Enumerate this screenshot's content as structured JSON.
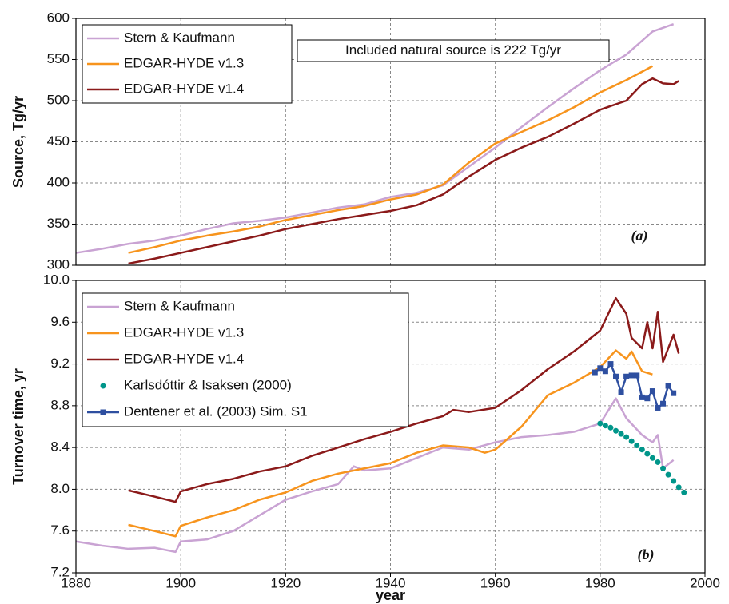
{
  "chart_data": [
    {
      "type": "line",
      "ylabel": "Source, Tg/yr",
      "annotation": "Included natural source is 222 Tg/yr",
      "panel_label": "(a)",
      "xlim": [
        1880,
        2000
      ],
      "xticks": [
        1880,
        1900,
        1920,
        1940,
        1960,
        1980,
        2000
      ],
      "ylim": [
        300,
        600
      ],
      "yticks": [
        300,
        350,
        400,
        450,
        500,
        550,
        600
      ],
      "grid": true,
      "legend": "upper left",
      "series": [
        {
          "name": "Stern & Kaufmann",
          "color": "#c9a3d3",
          "line": true,
          "x": [
            1880,
            1885,
            1890,
            1895,
            1900,
            1905,
            1910,
            1915,
            1920,
            1925,
            1930,
            1935,
            1940,
            1945,
            1950,
            1955,
            1960,
            1965,
            1970,
            1975,
            1980,
            1985,
            1990,
            1994
          ],
          "values": [
            315,
            320,
            326,
            330,
            336,
            344,
            351,
            354,
            358,
            364,
            370,
            374,
            383,
            388,
            397,
            420,
            443,
            468,
            492,
            515,
            537,
            556,
            584,
            593
          ]
        },
        {
          "name": "EDGAR-HYDE v1.3",
          "color": "#f7941d",
          "line": true,
          "x": [
            1890,
            1895,
            1900,
            1905,
            1910,
            1915,
            1920,
            1925,
            1930,
            1935,
            1940,
            1945,
            1950,
            1955,
            1960,
            1965,
            1970,
            1975,
            1980,
            1985,
            1990
          ],
          "values": [
            315,
            322,
            330,
            336,
            341,
            347,
            355,
            361,
            367,
            372,
            380,
            386,
            398,
            425,
            448,
            462,
            476,
            492,
            510,
            525,
            542
          ]
        },
        {
          "name": "EDGAR-HYDE v1.4",
          "color": "#8b1a1a",
          "line": true,
          "x": [
            1890,
            1895,
            1900,
            1905,
            1910,
            1915,
            1920,
            1925,
            1930,
            1935,
            1940,
            1945,
            1950,
            1955,
            1960,
            1965,
            1970,
            1975,
            1980,
            1985,
            1988,
            1990,
            1992,
            1994,
            1995
          ],
          "values": [
            302,
            308,
            315,
            322,
            329,
            336,
            344,
            350,
            356,
            361,
            366,
            373,
            386,
            408,
            428,
            443,
            456,
            472,
            489,
            500,
            520,
            527,
            521,
            520,
            524
          ]
        }
      ]
    },
    {
      "type": "line",
      "ylabel": "Turnover time, yr",
      "xlabel": "year",
      "panel_label": "(b)",
      "xlim": [
        1880,
        2000
      ],
      "xticks": [
        1880,
        1900,
        1920,
        1940,
        1960,
        1980,
        2000
      ],
      "ylim": [
        7.2,
        10.0
      ],
      "yticks": [
        7.2,
        7.6,
        {
          "value": 8.0,
          "label": "8.0"
        },
        8.4,
        8.8,
        9.2,
        9.6,
        {
          "value": 10.0,
          "label": "10.0"
        }
      ],
      "grid": true,
      "legend": "upper left",
      "series": [
        {
          "name": "Stern & Kaufmann",
          "color": "#c9a3d3",
          "line": true,
          "x": [
            1880,
            1885,
            1890,
            1895,
            1899,
            1900,
            1905,
            1910,
            1915,
            1920,
            1925,
            1930,
            1933,
            1935,
            1940,
            1945,
            1950,
            1955,
            1960,
            1965,
            1970,
            1975,
            1980,
            1983,
            1985,
            1988,
            1990,
            1991,
            1992,
            1994
          ],
          "values": [
            7.5,
            7.46,
            7.43,
            7.44,
            7.4,
            7.5,
            7.52,
            7.6,
            7.75,
            7.9,
            7.98,
            8.05,
            8.22,
            8.18,
            8.2,
            8.3,
            8.4,
            8.38,
            8.45,
            8.5,
            8.52,
            8.55,
            8.63,
            8.87,
            8.68,
            8.52,
            8.45,
            8.52,
            8.2,
            8.28
          ]
        },
        {
          "name": "EDGAR-HYDE v1.3",
          "color": "#f7941d",
          "line": true,
          "x": [
            1890,
            1895,
            1899,
            1900,
            1905,
            1910,
            1915,
            1920,
            1925,
            1930,
            1935,
            1940,
            1945,
            1950,
            1955,
            1958,
            1960,
            1965,
            1970,
            1975,
            1980,
            1983,
            1985,
            1986,
            1988,
            1990
          ],
          "values": [
            7.66,
            7.6,
            7.55,
            7.65,
            7.73,
            7.8,
            7.9,
            7.97,
            8.08,
            8.15,
            8.2,
            8.25,
            8.35,
            8.42,
            8.4,
            8.35,
            8.38,
            8.6,
            8.9,
            9.02,
            9.17,
            9.33,
            9.25,
            9.32,
            9.13,
            9.1
          ]
        },
        {
          "name": "EDGAR-HYDE v1.4",
          "color": "#8b1a1a",
          "line": true,
          "x": [
            1890,
            1895,
            1899,
            1900,
            1905,
            1910,
            1915,
            1920,
            1925,
            1930,
            1935,
            1940,
            1945,
            1950,
            1952,
            1955,
            1960,
            1965,
            1970,
            1975,
            1980,
            1983,
            1985,
            1986,
            1988,
            1989,
            1990,
            1991,
            1992,
            1994,
            1995
          ],
          "values": [
            7.99,
            7.93,
            7.88,
            7.98,
            8.05,
            8.1,
            8.17,
            8.22,
            8.32,
            8.4,
            8.48,
            8.55,
            8.63,
            8.7,
            8.76,
            8.74,
            8.78,
            8.95,
            9.15,
            9.32,
            9.52,
            9.83,
            9.68,
            9.45,
            9.35,
            9.6,
            9.35,
            9.7,
            9.22,
            9.48,
            9.3
          ]
        },
        {
          "name": "Karlsdóttir & Isaksen (2000)",
          "color": "#00968a",
          "line": false,
          "marker": "circle",
          "x": [
            1980,
            1981,
            1982,
            1983,
            1984,
            1985,
            1986,
            1987,
            1988,
            1989,
            1990,
            1991,
            1992,
            1993,
            1994,
            1995,
            1996
          ],
          "values": [
            8.63,
            8.61,
            8.59,
            8.56,
            8.53,
            8.5,
            8.46,
            8.42,
            8.38,
            8.34,
            8.3,
            8.26,
            8.2,
            8.14,
            8.08,
            8.02,
            7.97
          ]
        },
        {
          "name": "Dentener et al. (2003) Sim. S1",
          "color": "#2e4fa0",
          "line": true,
          "marker": "square",
          "x": [
            1979,
            1980,
            1981,
            1982,
            1983,
            1984,
            1985,
            1986,
            1987,
            1988,
            1989,
            1990,
            1991,
            1992,
            1993,
            1994
          ],
          "values": [
            9.12,
            9.16,
            9.13,
            9.2,
            9.08,
            8.93,
            9.08,
            9.09,
            9.09,
            8.88,
            8.87,
            8.94,
            8.78,
            8.82,
            8.99,
            8.92
          ]
        }
      ]
    }
  ]
}
